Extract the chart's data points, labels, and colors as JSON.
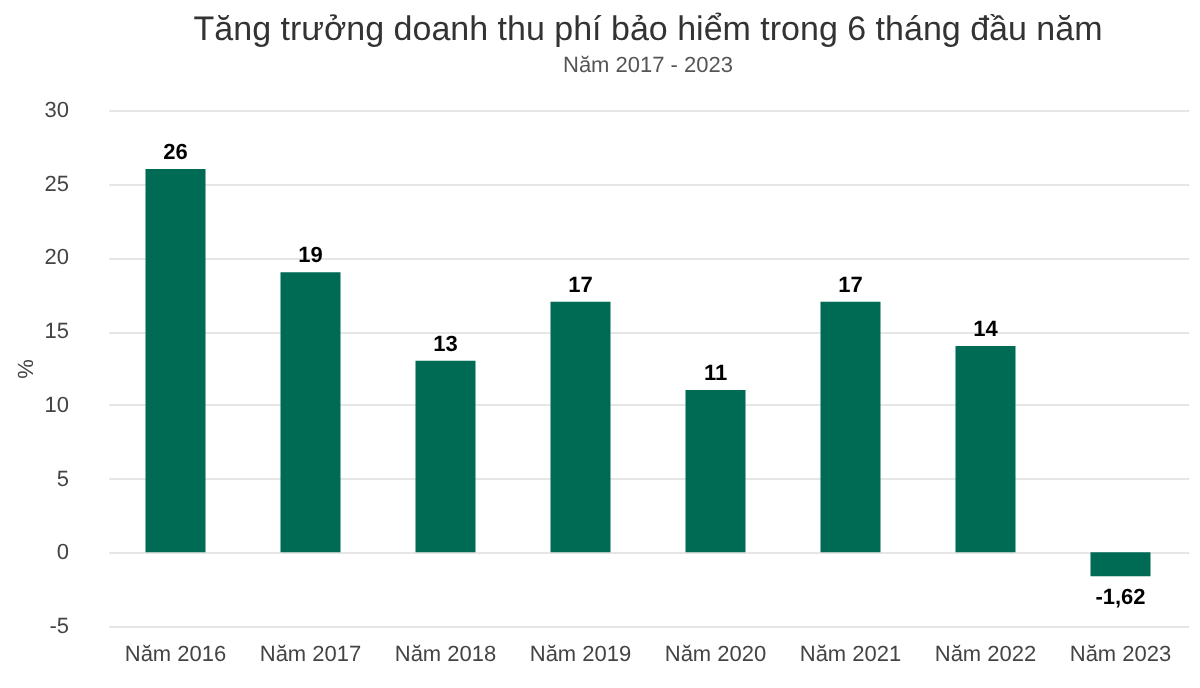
{
  "chart_data": {
    "type": "bar",
    "title": "Tăng trưởng doanh thu phí bảo hiểm trong 6 tháng đầu năm",
    "subtitle": "Năm 2017 - 2023",
    "ylabel": "%",
    "categories": [
      "Năm 2016",
      "Năm 2017",
      "Năm 2018",
      "Năm 2019",
      "Năm 2020",
      "Năm 2021",
      "Năm 2022",
      "Năm 2023"
    ],
    "values": [
      26,
      19,
      13,
      17,
      11,
      17,
      14,
      -1.62
    ],
    "value_labels": [
      "26",
      "19",
      "13",
      "17",
      "11",
      "17",
      "14",
      "-1,62"
    ],
    "color": "#006b54",
    "ylim": [
      -5,
      30
    ],
    "yticks": [
      -5,
      0,
      5,
      10,
      15,
      20,
      25,
      30
    ],
    "grid": "y"
  }
}
